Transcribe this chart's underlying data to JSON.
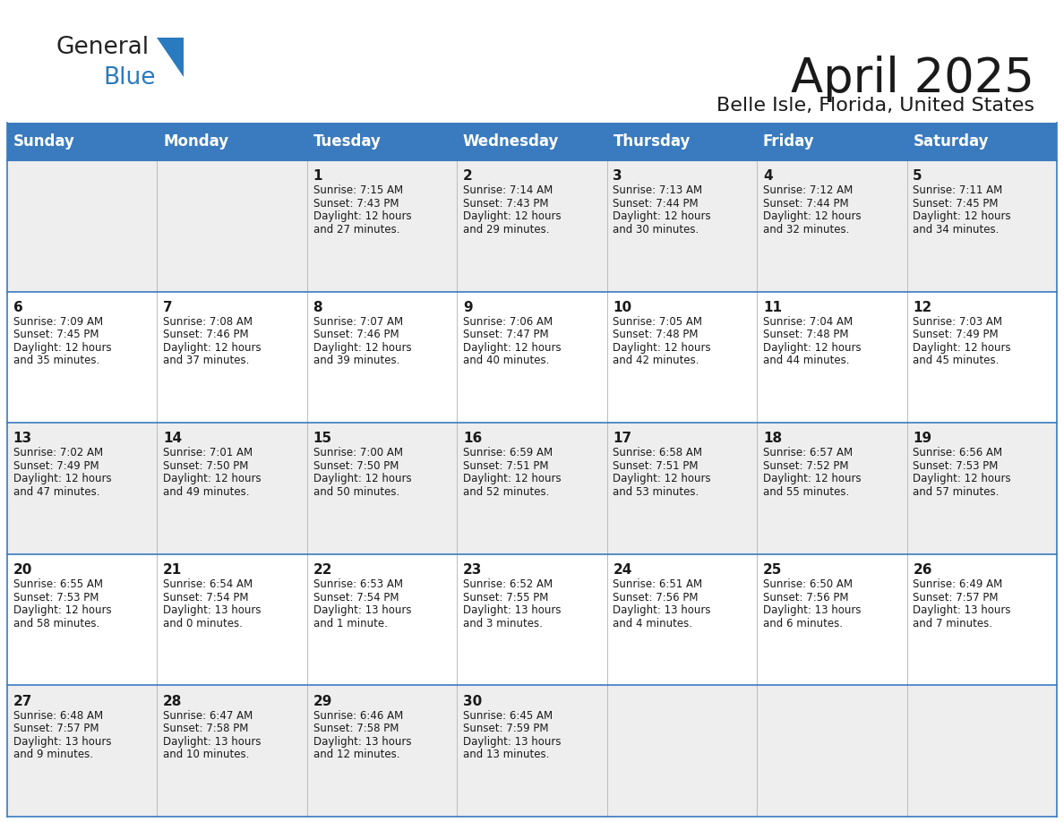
{
  "title": "April 2025",
  "subtitle": "Belle Isle, Florida, United States",
  "header_color": "#3a7abf",
  "header_text_color": "#ffffff",
  "cell_bg_even": "#eeeeee",
  "cell_bg_odd": "#ffffff",
  "border_color": "#3a7abf",
  "text_color": "#1a1a1a",
  "days_of_week": [
    "Sunday",
    "Monday",
    "Tuesday",
    "Wednesday",
    "Thursday",
    "Friday",
    "Saturday"
  ],
  "weeks": [
    [
      {
        "day": "",
        "lines": []
      },
      {
        "day": "",
        "lines": []
      },
      {
        "day": "1",
        "lines": [
          "Sunrise: 7:15 AM",
          "Sunset: 7:43 PM",
          "Daylight: 12 hours",
          "and 27 minutes."
        ]
      },
      {
        "day": "2",
        "lines": [
          "Sunrise: 7:14 AM",
          "Sunset: 7:43 PM",
          "Daylight: 12 hours",
          "and 29 minutes."
        ]
      },
      {
        "day": "3",
        "lines": [
          "Sunrise: 7:13 AM",
          "Sunset: 7:44 PM",
          "Daylight: 12 hours",
          "and 30 minutes."
        ]
      },
      {
        "day": "4",
        "lines": [
          "Sunrise: 7:12 AM",
          "Sunset: 7:44 PM",
          "Daylight: 12 hours",
          "and 32 minutes."
        ]
      },
      {
        "day": "5",
        "lines": [
          "Sunrise: 7:11 AM",
          "Sunset: 7:45 PM",
          "Daylight: 12 hours",
          "and 34 minutes."
        ]
      }
    ],
    [
      {
        "day": "6",
        "lines": [
          "Sunrise: 7:09 AM",
          "Sunset: 7:45 PM",
          "Daylight: 12 hours",
          "and 35 minutes."
        ]
      },
      {
        "day": "7",
        "lines": [
          "Sunrise: 7:08 AM",
          "Sunset: 7:46 PM",
          "Daylight: 12 hours",
          "and 37 minutes."
        ]
      },
      {
        "day": "8",
        "lines": [
          "Sunrise: 7:07 AM",
          "Sunset: 7:46 PM",
          "Daylight: 12 hours",
          "and 39 minutes."
        ]
      },
      {
        "day": "9",
        "lines": [
          "Sunrise: 7:06 AM",
          "Sunset: 7:47 PM",
          "Daylight: 12 hours",
          "and 40 minutes."
        ]
      },
      {
        "day": "10",
        "lines": [
          "Sunrise: 7:05 AM",
          "Sunset: 7:48 PM",
          "Daylight: 12 hours",
          "and 42 minutes."
        ]
      },
      {
        "day": "11",
        "lines": [
          "Sunrise: 7:04 AM",
          "Sunset: 7:48 PM",
          "Daylight: 12 hours",
          "and 44 minutes."
        ]
      },
      {
        "day": "12",
        "lines": [
          "Sunrise: 7:03 AM",
          "Sunset: 7:49 PM",
          "Daylight: 12 hours",
          "and 45 minutes."
        ]
      }
    ],
    [
      {
        "day": "13",
        "lines": [
          "Sunrise: 7:02 AM",
          "Sunset: 7:49 PM",
          "Daylight: 12 hours",
          "and 47 minutes."
        ]
      },
      {
        "day": "14",
        "lines": [
          "Sunrise: 7:01 AM",
          "Sunset: 7:50 PM",
          "Daylight: 12 hours",
          "and 49 minutes."
        ]
      },
      {
        "day": "15",
        "lines": [
          "Sunrise: 7:00 AM",
          "Sunset: 7:50 PM",
          "Daylight: 12 hours",
          "and 50 minutes."
        ]
      },
      {
        "day": "16",
        "lines": [
          "Sunrise: 6:59 AM",
          "Sunset: 7:51 PM",
          "Daylight: 12 hours",
          "and 52 minutes."
        ]
      },
      {
        "day": "17",
        "lines": [
          "Sunrise: 6:58 AM",
          "Sunset: 7:51 PM",
          "Daylight: 12 hours",
          "and 53 minutes."
        ]
      },
      {
        "day": "18",
        "lines": [
          "Sunrise: 6:57 AM",
          "Sunset: 7:52 PM",
          "Daylight: 12 hours",
          "and 55 minutes."
        ]
      },
      {
        "day": "19",
        "lines": [
          "Sunrise: 6:56 AM",
          "Sunset: 7:53 PM",
          "Daylight: 12 hours",
          "and 57 minutes."
        ]
      }
    ],
    [
      {
        "day": "20",
        "lines": [
          "Sunrise: 6:55 AM",
          "Sunset: 7:53 PM",
          "Daylight: 12 hours",
          "and 58 minutes."
        ]
      },
      {
        "day": "21",
        "lines": [
          "Sunrise: 6:54 AM",
          "Sunset: 7:54 PM",
          "Daylight: 13 hours",
          "and 0 minutes."
        ]
      },
      {
        "day": "22",
        "lines": [
          "Sunrise: 6:53 AM",
          "Sunset: 7:54 PM",
          "Daylight: 13 hours",
          "and 1 minute."
        ]
      },
      {
        "day": "23",
        "lines": [
          "Sunrise: 6:52 AM",
          "Sunset: 7:55 PM",
          "Daylight: 13 hours",
          "and 3 minutes."
        ]
      },
      {
        "day": "24",
        "lines": [
          "Sunrise: 6:51 AM",
          "Sunset: 7:56 PM",
          "Daylight: 13 hours",
          "and 4 minutes."
        ]
      },
      {
        "day": "25",
        "lines": [
          "Sunrise: 6:50 AM",
          "Sunset: 7:56 PM",
          "Daylight: 13 hours",
          "and 6 minutes."
        ]
      },
      {
        "day": "26",
        "lines": [
          "Sunrise: 6:49 AM",
          "Sunset: 7:57 PM",
          "Daylight: 13 hours",
          "and 7 minutes."
        ]
      }
    ],
    [
      {
        "day": "27",
        "lines": [
          "Sunrise: 6:48 AM",
          "Sunset: 7:57 PM",
          "Daylight: 13 hours",
          "and 9 minutes."
        ]
      },
      {
        "day": "28",
        "lines": [
          "Sunrise: 6:47 AM",
          "Sunset: 7:58 PM",
          "Daylight: 13 hours",
          "and 10 minutes."
        ]
      },
      {
        "day": "29",
        "lines": [
          "Sunrise: 6:46 AM",
          "Sunset: 7:58 PM",
          "Daylight: 13 hours",
          "and 12 minutes."
        ]
      },
      {
        "day": "30",
        "lines": [
          "Sunrise: 6:45 AM",
          "Sunset: 7:59 PM",
          "Daylight: 13 hours",
          "and 13 minutes."
        ]
      },
      {
        "day": "",
        "lines": []
      },
      {
        "day": "",
        "lines": []
      },
      {
        "day": "",
        "lines": []
      }
    ]
  ],
  "logo_general_color": "#222222",
  "logo_blue_color": "#2a7abf",
  "logo_triangle_color": "#2a7abf"
}
